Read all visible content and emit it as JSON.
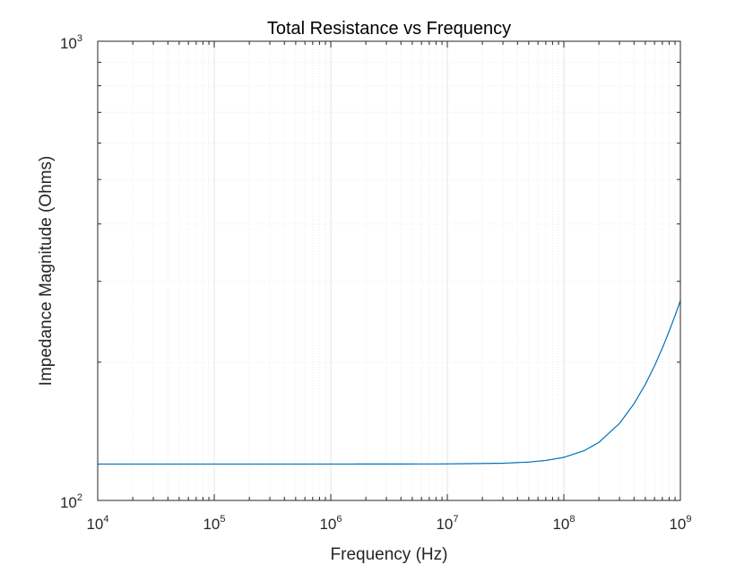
{
  "chart_data": {
    "type": "line",
    "title": "Total Resistance vs Frequency",
    "xlabel": "Frequency (Hz)",
    "ylabel": "Impedance Magnitude (Ohms)",
    "x_scale": "log",
    "y_scale": "log",
    "xlim": [
      10000,
      1000000000
    ],
    "ylim": [
      100,
      1000
    ],
    "grid": true,
    "minor_grid": true,
    "x_ticks": [
      {
        "base": "10",
        "exp": "4",
        "value": 10000
      },
      {
        "base": "10",
        "exp": "5",
        "value": 100000
      },
      {
        "base": "10",
        "exp": "6",
        "value": 1000000
      },
      {
        "base": "10",
        "exp": "7",
        "value": 10000000
      },
      {
        "base": "10",
        "exp": "8",
        "value": 100000000
      },
      {
        "base": "10",
        "exp": "9",
        "value": 1000000000
      }
    ],
    "y_ticks": [
      {
        "base": "10",
        "exp": "2",
        "value": 100
      },
      {
        "base": "10",
        "exp": "3",
        "value": 1000
      }
    ],
    "series": [
      {
        "color": "#0072bd",
        "x": [
          10000,
          100000,
          1000000,
          10000000,
          30000000,
          50000000,
          70000000,
          100000000,
          150000000,
          200000000,
          300000000,
          400000000,
          500000000,
          600000000,
          700000000,
          800000000,
          900000000,
          1000000000
        ],
        "y": [
          120,
          120,
          120,
          120.1,
          120.5,
          121.2,
          122.2,
          124.1,
          128.4,
          133.8,
          147.1,
          162.4,
          178.9,
          196.4,
          214.6,
          233.4,
          252.7,
          272.4
        ]
      }
    ]
  },
  "colors": {
    "axes_edge": "#262626",
    "grid": "#e3e3e3",
    "minor_grid": "#ececec",
    "line": "#0072bd"
  }
}
